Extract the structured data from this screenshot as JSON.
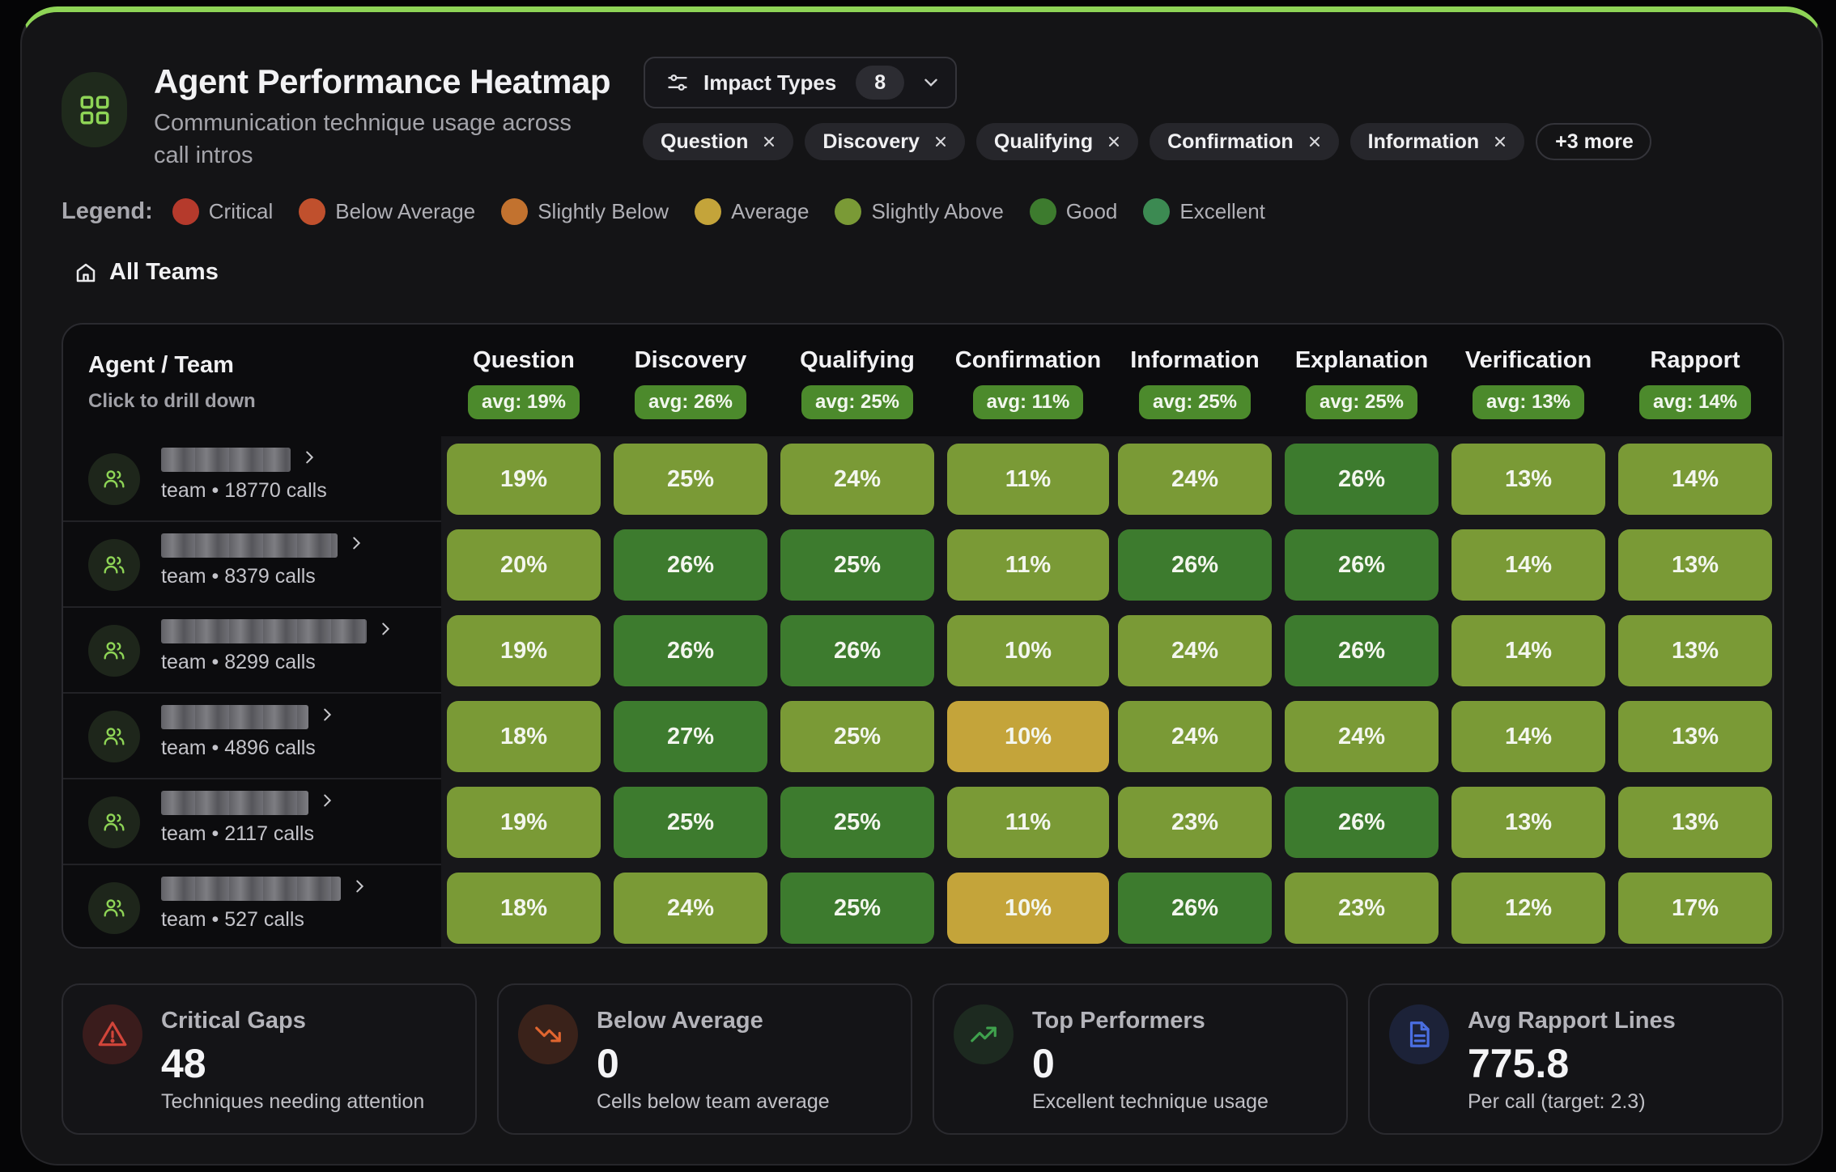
{
  "header": {
    "title": "Agent Performance Heatmap",
    "subtitle": "Communication technique usage across call intros",
    "icon": "grid-icon",
    "accent": "#8ed456"
  },
  "impact_filter": {
    "label": "Impact Types",
    "count": "8",
    "chips": [
      "Question",
      "Discovery",
      "Qualifying",
      "Confirmation",
      "Information"
    ],
    "more_label": "+3 more"
  },
  "legend": {
    "title": "Legend:",
    "items": [
      {
        "label": "Critical",
        "color": "#b53a2c"
      },
      {
        "label": "Below Average",
        "color": "#c0502d"
      },
      {
        "label": "Slightly Below",
        "color": "#c2722f"
      },
      {
        "label": "Average",
        "color": "#c4a43a"
      },
      {
        "label": "Slightly Above",
        "color": "#7a9a36"
      },
      {
        "label": "Good",
        "color": "#3d7b2e"
      },
      {
        "label": "Excellent",
        "color": "#3c8a52"
      }
    ]
  },
  "breadcrumb": {
    "label": "All Teams",
    "icon": "home-icon"
  },
  "table": {
    "agent_header": "Agent / Team",
    "agent_subheader": "Click to drill down",
    "columns": [
      {
        "name": "Question",
        "avg": "avg: 19%"
      },
      {
        "name": "Discovery",
        "avg": "avg: 26%"
      },
      {
        "name": "Qualifying",
        "avg": "avg: 25%"
      },
      {
        "name": "Confirmation",
        "avg": "avg: 11%"
      },
      {
        "name": "Information",
        "avg": "avg: 25%"
      },
      {
        "name": "Explanation",
        "avg": "avg: 25%"
      },
      {
        "name": "Verification",
        "avg": "avg: 13%"
      },
      {
        "name": "Rapport",
        "avg": "avg: 14%"
      }
    ],
    "rows": [
      {
        "meta": "team • 18770 calls",
        "cells": [
          {
            "v": "19%",
            "level": "Slightly Above"
          },
          {
            "v": "25%",
            "level": "Slightly Above"
          },
          {
            "v": "24%",
            "level": "Slightly Above"
          },
          {
            "v": "11%",
            "level": "Slightly Above"
          },
          {
            "v": "24%",
            "level": "Slightly Above"
          },
          {
            "v": "26%",
            "level": "Good"
          },
          {
            "v": "13%",
            "level": "Slightly Above"
          },
          {
            "v": "14%",
            "level": "Slightly Above"
          }
        ]
      },
      {
        "meta": "team • 8379 calls",
        "cells": [
          {
            "v": "20%",
            "level": "Slightly Above"
          },
          {
            "v": "26%",
            "level": "Good"
          },
          {
            "v": "25%",
            "level": "Good"
          },
          {
            "v": "11%",
            "level": "Slightly Above"
          },
          {
            "v": "26%",
            "level": "Good"
          },
          {
            "v": "26%",
            "level": "Good"
          },
          {
            "v": "14%",
            "level": "Slightly Above"
          },
          {
            "v": "13%",
            "level": "Slightly Above"
          }
        ]
      },
      {
        "meta": "team • 8299 calls",
        "cells": [
          {
            "v": "19%",
            "level": "Slightly Above"
          },
          {
            "v": "26%",
            "level": "Good"
          },
          {
            "v": "26%",
            "level": "Good"
          },
          {
            "v": "10%",
            "level": "Slightly Above"
          },
          {
            "v": "24%",
            "level": "Slightly Above"
          },
          {
            "v": "26%",
            "level": "Good"
          },
          {
            "v": "14%",
            "level": "Slightly Above"
          },
          {
            "v": "13%",
            "level": "Slightly Above"
          }
        ]
      },
      {
        "meta": "team • 4896 calls",
        "cells": [
          {
            "v": "18%",
            "level": "Slightly Above"
          },
          {
            "v": "27%",
            "level": "Good"
          },
          {
            "v": "25%",
            "level": "Slightly Above"
          },
          {
            "v": "10%",
            "level": "Average"
          },
          {
            "v": "24%",
            "level": "Slightly Above"
          },
          {
            "v": "24%",
            "level": "Slightly Above"
          },
          {
            "v": "14%",
            "level": "Slightly Above"
          },
          {
            "v": "13%",
            "level": "Slightly Above"
          }
        ]
      },
      {
        "meta": "team • 2117 calls",
        "cells": [
          {
            "v": "19%",
            "level": "Slightly Above"
          },
          {
            "v": "25%",
            "level": "Good"
          },
          {
            "v": "25%",
            "level": "Good"
          },
          {
            "v": "11%",
            "level": "Slightly Above"
          },
          {
            "v": "23%",
            "level": "Slightly Above"
          },
          {
            "v": "26%",
            "level": "Good"
          },
          {
            "v": "13%",
            "level": "Slightly Above"
          },
          {
            "v": "13%",
            "level": "Slightly Above"
          }
        ]
      },
      {
        "meta": "team • 527 calls",
        "cells": [
          {
            "v": "18%",
            "level": "Slightly Above"
          },
          {
            "v": "24%",
            "level": "Slightly Above"
          },
          {
            "v": "25%",
            "level": "Good"
          },
          {
            "v": "10%",
            "level": "Average"
          },
          {
            "v": "26%",
            "level": "Good"
          },
          {
            "v": "23%",
            "level": "Slightly Above"
          },
          {
            "v": "12%",
            "level": "Slightly Above"
          },
          {
            "v": "17%",
            "level": "Slightly Above"
          }
        ]
      }
    ]
  },
  "stats": [
    {
      "title": "Critical Gaps",
      "value": "48",
      "sub": "Techniques needing attention",
      "icon": "alert-triangle-icon",
      "color": "#d2453a"
    },
    {
      "title": "Below Average",
      "value": "0",
      "sub": "Cells below team average",
      "icon": "trending-down-icon",
      "color": "#e0652f"
    },
    {
      "title": "Top Performers",
      "value": "0",
      "sub": "Excellent technique usage",
      "icon": "trending-up-icon",
      "color": "#3fa14d"
    },
    {
      "title": "Avg Rapport Lines",
      "value": "775.8",
      "sub": "Per call (target: 2.3)",
      "icon": "document-icon",
      "color": "#4a6ee0"
    }
  ]
}
